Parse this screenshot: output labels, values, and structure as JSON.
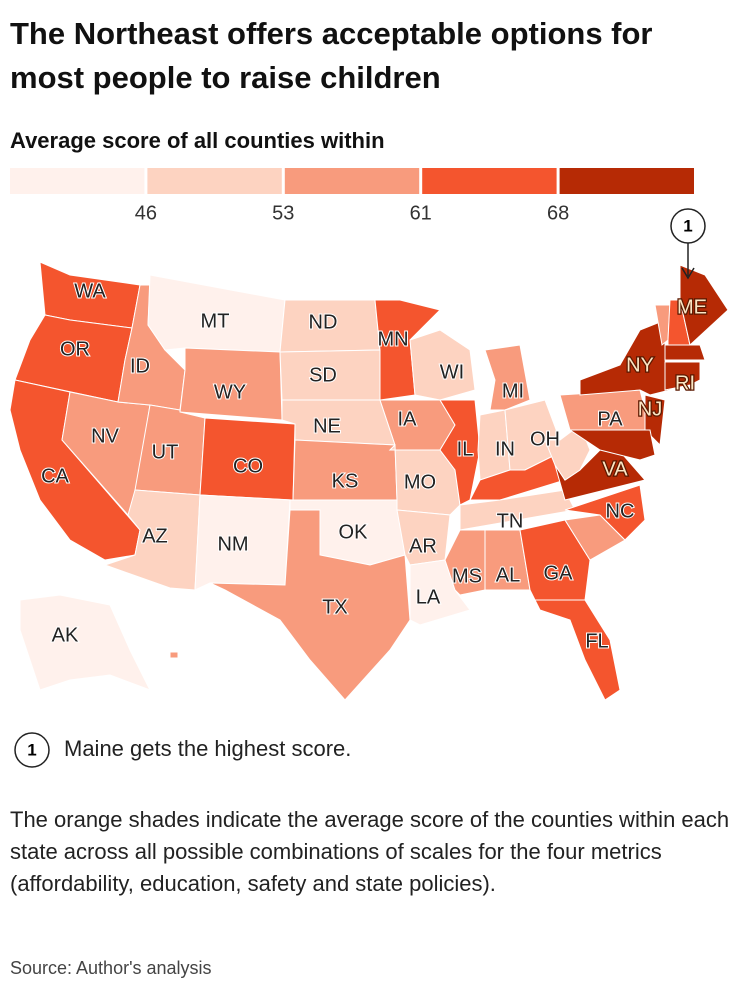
{
  "header": {
    "title": "The Northeast offers acceptable options for most people to raise children",
    "subtitle": "Average score of all counties within"
  },
  "legend": {
    "colors": [
      "#fff1ec",
      "#fdd3c1",
      "#f89b7d",
      "#f4552e",
      "#b62a05"
    ],
    "ticks": [
      46,
      53,
      61,
      68
    ]
  },
  "states": [
    {
      "label": "WA",
      "color": "#f4552e"
    },
    {
      "label": "OR",
      "color": "#f4552e"
    },
    {
      "label": "CA",
      "color": "#f4552e"
    },
    {
      "label": "NV",
      "color": "#f89b7d"
    },
    {
      "label": "ID",
      "color": "#f89b7d"
    },
    {
      "label": "MT",
      "color": "#fff1ec"
    },
    {
      "label": "WY",
      "color": "#f89b7d"
    },
    {
      "label": "UT",
      "color": "#f89b7d"
    },
    {
      "label": "CO",
      "color": "#f4552e"
    },
    {
      "label": "AZ",
      "color": "#fdd3c1"
    },
    {
      "label": "NM",
      "color": "#fff1ec"
    },
    {
      "label": "ND",
      "color": "#fdd3c1"
    },
    {
      "label": "SD",
      "color": "#fdd3c1"
    },
    {
      "label": "NE",
      "color": "#fdd3c1"
    },
    {
      "label": "KS",
      "color": "#f89b7d"
    },
    {
      "label": "OK",
      "color": "#fff1ec"
    },
    {
      "label": "TX",
      "color": "#f89b7d"
    },
    {
      "label": "MN",
      "color": "#f4552e"
    },
    {
      "label": "IA",
      "color": "#f89b7d"
    },
    {
      "label": "MO",
      "color": "#fdd3c1"
    },
    {
      "label": "AR",
      "color": "#fdd3c1"
    },
    {
      "label": "LA",
      "color": "#fff1ec"
    },
    {
      "label": "WI",
      "color": "#fdd3c1"
    },
    {
      "label": "IL",
      "color": "#f4552e"
    },
    {
      "label": "MI",
      "color": "#f89b7d"
    },
    {
      "label": "IN",
      "color": "#fdd3c1"
    },
    {
      "label": "OH",
      "color": "#fdd3c1"
    },
    {
      "label": null,
      "color": "#f4552e"
    },
    {
      "label": "TN",
      "color": "#fdd3c1"
    },
    {
      "label": "MS",
      "color": "#f89b7d"
    },
    {
      "label": "AL",
      "color": "#f89b7d"
    },
    {
      "label": "GA",
      "color": "#f4552e"
    },
    {
      "label": "FL",
      "color": "#f4552e"
    },
    {
      "label": null,
      "color": "#f89b7d"
    },
    {
      "label": "NC",
      "color": "#f4552e"
    },
    {
      "label": "VA",
      "color": "#b62a05"
    },
    {
      "label": null,
      "color": "#fdd3c1"
    },
    {
      "label": "PA",
      "color": "#f89b7d"
    },
    {
      "label": "NY",
      "color": "#b62a05"
    },
    {
      "label": "NJ",
      "color": "#b62a05"
    },
    {
      "label": null,
      "color": "#b62a05"
    },
    {
      "label": null,
      "color": "#f89b7d"
    },
    {
      "label": null,
      "color": "#f4552e"
    },
    {
      "label": "ME",
      "color": "#b62a05"
    },
    {
      "label": null,
      "color": "#b62a05"
    },
    {
      "label": "RI",
      "color": "#b62a05"
    },
    {
      "label": "AK",
      "color": "#fff1ec"
    },
    {
      "label": null,
      "color": "#f89b7d"
    }
  ],
  "annotation": {
    "marker": "1",
    "text": "Maine gets the highest score."
  },
  "note": "The orange shades indicate the average score of the counties within each state across all possible combinations of scales for the four metrics (affordability, education, safety and state policies).",
  "source": "Source: Author's analysis"
}
